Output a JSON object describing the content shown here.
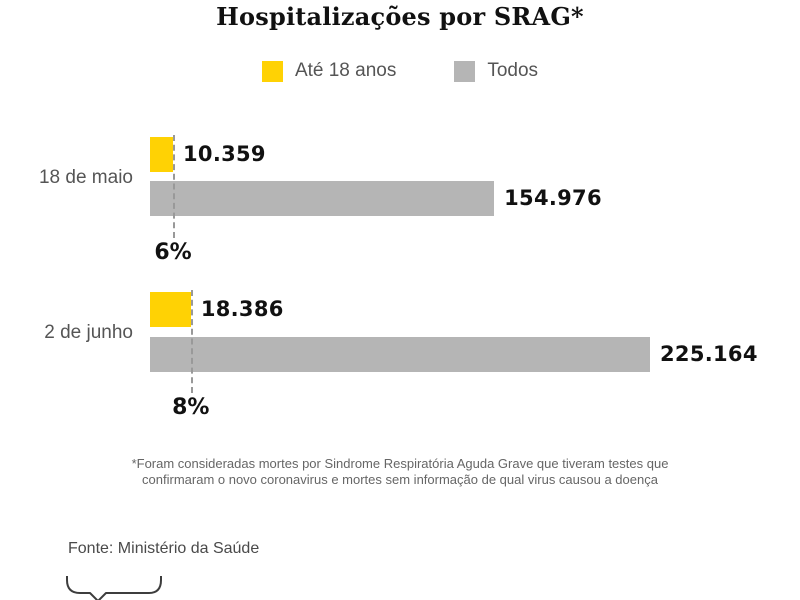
{
  "title": "Hospitalizações por SRAG*",
  "legend": {
    "items": [
      {
        "label": "Até 18 anos",
        "color": "#ffd204"
      },
      {
        "label": "Todos",
        "color": "#b5b5b5"
      }
    ]
  },
  "chart_data": {
    "type": "bar",
    "orientation": "horizontal",
    "title": "Hospitalizações por SRAG*",
    "categories": [
      "18 de maio",
      "2 de junho"
    ],
    "series": [
      {
        "name": "Até 18 anos",
        "color": "#ffd204",
        "values": [
          10359,
          18386
        ],
        "value_labels": [
          "10.359",
          "18.386"
        ]
      },
      {
        "name": "Todos",
        "color": "#b5b5b5",
        "values": [
          154976,
          225164
        ],
        "value_labels": [
          "154.976",
          "225.164"
        ]
      }
    ],
    "percent_annotations": [
      "6%",
      "8%"
    ],
    "xlim": [
      0,
      225164
    ],
    "grid": false,
    "legend_position": "top"
  },
  "footnote": {
    "lines": [
      "*Foram consideradas mortes por Sindrome Respiratória Aguda Grave que tiveram testes que",
      "confirmaram o novo coronavirus e mortes sem informação de qual virus causou a doença"
    ]
  },
  "source": {
    "text": "Fonte: Ministério da Saúde"
  },
  "colors": {
    "accent_yellow": "#ffd204",
    "bar_gray": "#b5b5b5",
    "dashed_line": "#999999",
    "text_dark": "#111111",
    "text_muted": "#555555",
    "footnote": "#666666"
  }
}
